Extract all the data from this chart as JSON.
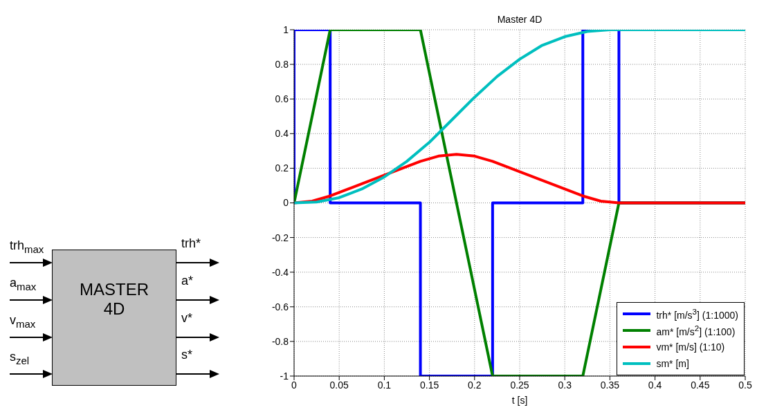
{
  "chart_data": [
    {
      "type": "other",
      "annotations": [
        "trh$_{max}$",
        "a$_{max}$",
        "v$_{max}$",
        "s$_{zel}$",
        "MASTER 4D",
        "trh*",
        "a*",
        "v*",
        "s*"
      ]
    },
    {
      "type": "line",
      "title": "Master 4D",
      "xlabel": "t [s]",
      "xlim": [
        0,
        0.5
      ],
      "ylim": [
        -1,
        1
      ],
      "xticks": [
        0,
        0.05,
        0.1,
        0.15,
        0.2,
        0.25,
        0.3,
        0.35,
        0.4,
        0.45,
        0.5
      ],
      "yticks": [
        -1,
        -0.8,
        -0.6,
        -0.4,
        -0.2,
        0,
        0.2,
        0.4,
        0.6,
        0.8,
        1
      ],
      "grid": true,
      "legend": "bottom right",
      "series": [
        {
          "name": "trh* [m/s$^{3}$] (1:1000)",
          "color": "#0000ff",
          "x": [
            0,
            0,
            0.04,
            0.04,
            0.14,
            0.14,
            0.22,
            0.22,
            0.32,
            0.32,
            0.36,
            0.36,
            0.5
          ],
          "values": [
            0,
            1,
            1,
            0,
            0,
            -1,
            -1,
            0,
            0,
            1,
            1,
            0,
            0
          ]
        },
        {
          "name": "am* [m/s$^{2}$] (1:100)",
          "color": "#008000",
          "x": [
            0,
            0.04,
            0.14,
            0.22,
            0.32,
            0.36,
            0.5
          ],
          "values": [
            0,
            1,
            1,
            -1,
            -1,
            0,
            0
          ]
        },
        {
          "name": "vm* [m/s] (1:10)",
          "color": "#ff0000",
          "x": [
            0,
            0.02,
            0.04,
            0.06,
            0.08,
            0.1,
            0.12,
            0.14,
            0.16,
            0.18,
            0.2,
            0.22,
            0.24,
            0.26,
            0.28,
            0.3,
            0.32,
            0.34,
            0.36,
            0.5
          ],
          "values": [
            0,
            0.01,
            0.04,
            0.08,
            0.12,
            0.16,
            0.2,
            0.24,
            0.27,
            0.28,
            0.27,
            0.24,
            0.2,
            0.16,
            0.12,
            0.08,
            0.04,
            0.01,
            0,
            0
          ]
        },
        {
          "name": "sm* [m]",
          "color": "#00bfbf",
          "x": [
            0,
            0.025,
            0.05,
            0.075,
            0.1,
            0.125,
            0.15,
            0.175,
            0.2,
            0.225,
            0.25,
            0.275,
            0.3,
            0.325,
            0.35,
            0.5
          ],
          "values": [
            0,
            0.005,
            0.03,
            0.08,
            0.15,
            0.24,
            0.35,
            0.48,
            0.61,
            0.73,
            0.83,
            0.91,
            0.96,
            0.99,
            1,
            1
          ]
        }
      ]
    }
  ]
}
